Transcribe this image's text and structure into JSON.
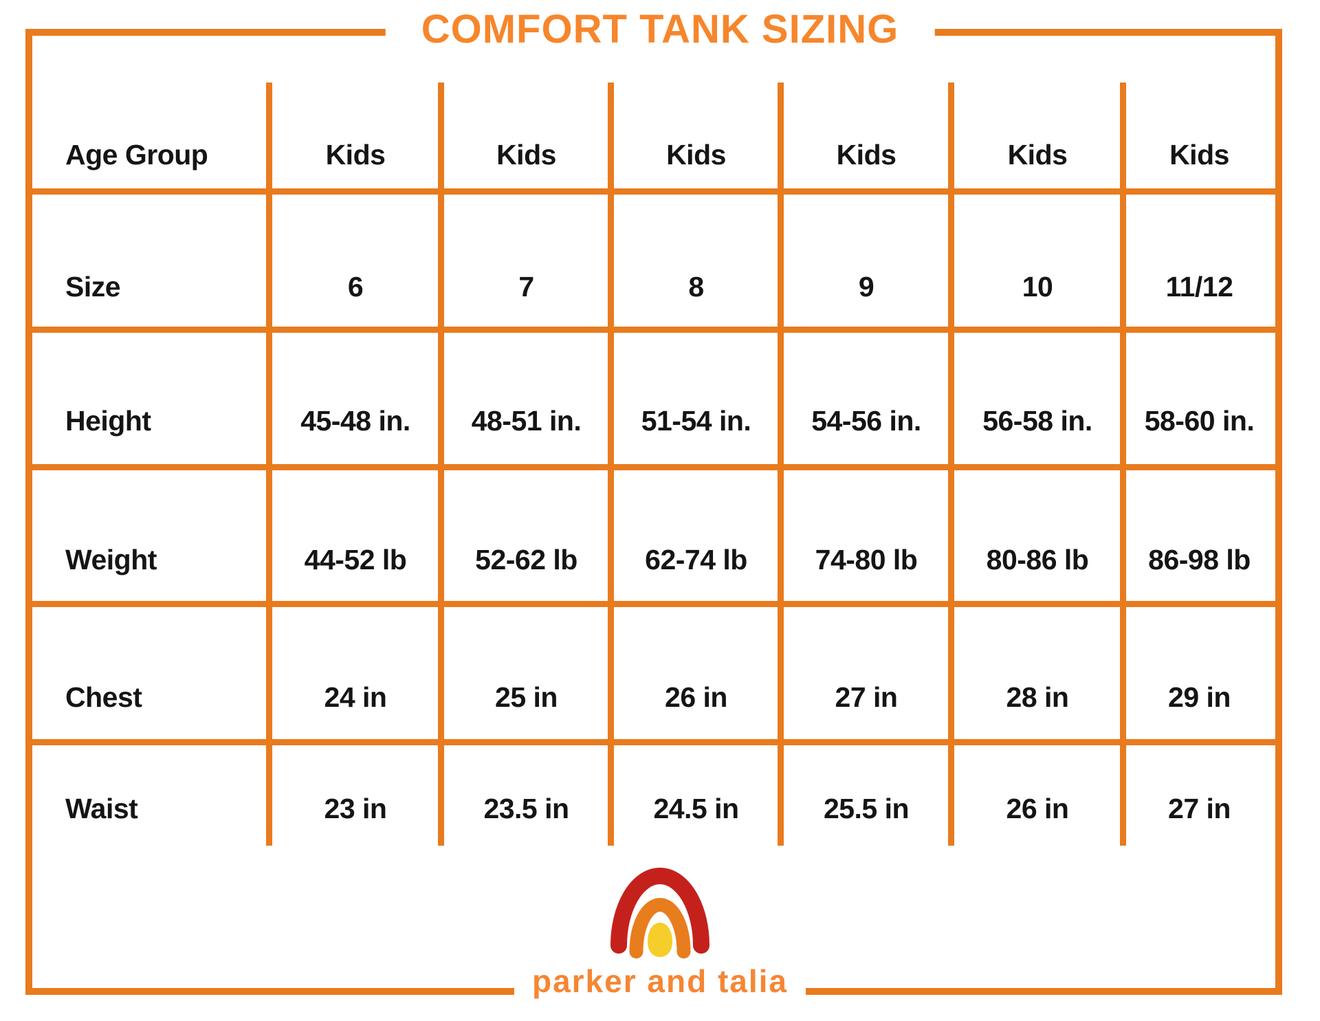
{
  "title": "COMFORT TANK SIZING",
  "table": {
    "rows": [
      {
        "label": "Age Group",
        "values": [
          "Kids",
          "Kids",
          "Kids",
          "Kids",
          "Kids",
          "Kids"
        ]
      },
      {
        "label": "Size",
        "values": [
          "6",
          "7",
          "8",
          "9",
          "10",
          "11/12"
        ]
      },
      {
        "label": "Height",
        "values": [
          "45-48 in.",
          "48-51 in.",
          "51-54 in.",
          "54-56 in.",
          "56-58 in.",
          "58-60 in."
        ]
      },
      {
        "label": "Weight",
        "values": [
          "44-52 lb",
          "52-62 lb",
          "62-74 lb",
          "74-80 lb",
          "80-86 lb",
          "86-98 lb"
        ]
      },
      {
        "label": "Chest",
        "values": [
          "24 in",
          "25 in",
          "26 in",
          "27 in",
          "28 in",
          "29 in"
        ]
      },
      {
        "label": "Waist",
        "values": [
          "23 in",
          "23.5 in",
          "24.5 in",
          "25.5 in",
          "26 in",
          "27 in"
        ]
      }
    ]
  },
  "brand": {
    "name": "parker and talia",
    "logo": "rainbow-logo"
  },
  "colors": {
    "grid_orange": "#E87B1E",
    "title_orange": "#F6862B",
    "brand_orange": "#F58634",
    "logo_red": "#C4211D",
    "logo_orange": "#E87D1E",
    "logo_yellow": "#F6CE2B",
    "text_black": "#151515"
  }
}
